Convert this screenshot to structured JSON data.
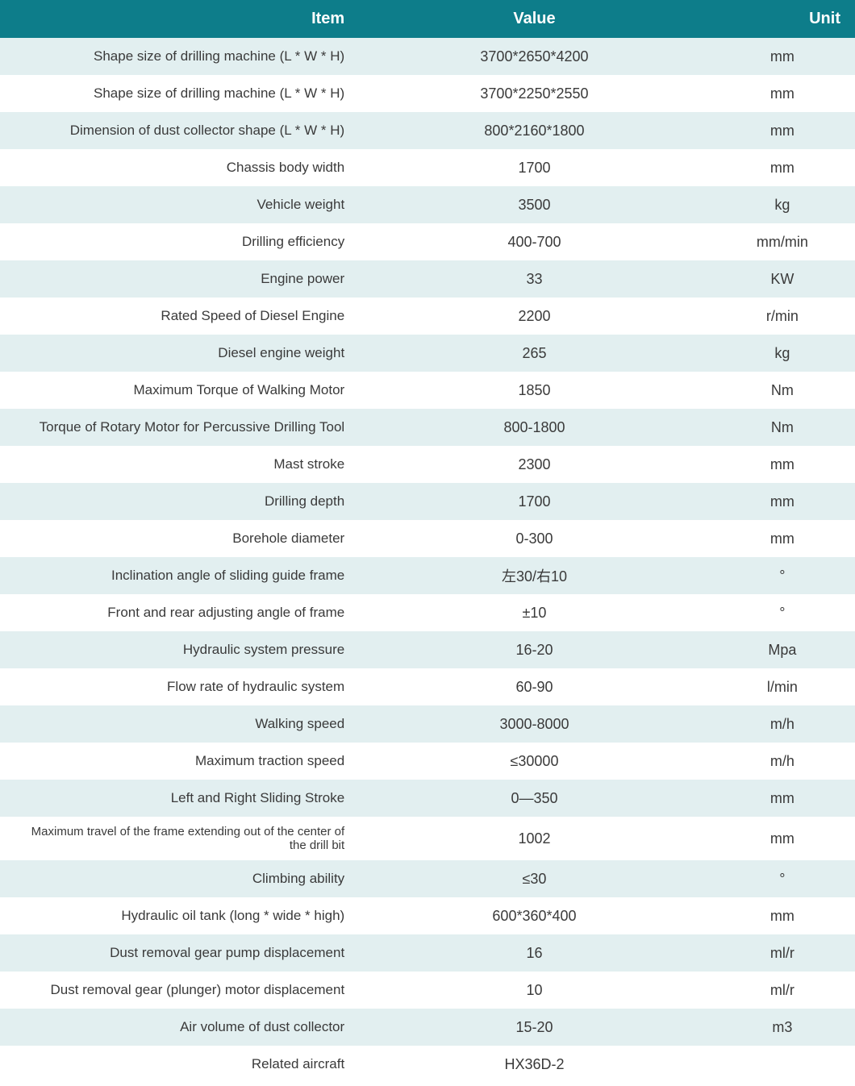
{
  "table": {
    "type": "table",
    "header_bg": "#0d7d8a",
    "header_text_color": "#ffffff",
    "row_odd_bg": "#e2eff0",
    "row_even_bg": "#ffffff",
    "text_color": "#3a3a3a",
    "columns": [
      {
        "key": "item",
        "label": "Item",
        "align": "right",
        "width_pct": 42
      },
      {
        "key": "value",
        "label": "Value",
        "align": "center",
        "width_pct": 41
      },
      {
        "key": "unit",
        "label": "Unit",
        "align": "right",
        "width_pct": 17
      }
    ],
    "rows": [
      {
        "item": "Shape size of drilling machine (L * W * H)",
        "value": "3700*2650*4200",
        "unit": "mm"
      },
      {
        "item": "Shape size of drilling machine (L * W * H)",
        "value": "3700*2250*2550",
        "unit": "mm"
      },
      {
        "item": "Dimension of dust collector shape (L * W * H)",
        "value": "800*2160*1800",
        "unit": "mm"
      },
      {
        "item": "Chassis body width",
        "value": "1700",
        "unit": "mm"
      },
      {
        "item": "Vehicle weight",
        "value": "3500",
        "unit": "kg"
      },
      {
        "item": "Drilling efficiency",
        "value": "400-700",
        "unit": "mm/min"
      },
      {
        "item": "Engine power",
        "value": "33",
        "unit": "KW"
      },
      {
        "item": "Rated Speed of Diesel Engine",
        "value": "2200",
        "unit": "r/min"
      },
      {
        "item": "Diesel engine weight",
        "value": "265",
        "unit": "kg"
      },
      {
        "item": "Maximum Torque of Walking Motor",
        "value": "1850",
        "unit": "Nm"
      },
      {
        "item": "Torque of Rotary Motor for Percussive Drilling Tool",
        "value": "800-1800",
        "unit": "Nm"
      },
      {
        "item": "Mast stroke",
        "value": "2300",
        "unit": "mm"
      },
      {
        "item": "Drilling depth",
        "value": "1700",
        "unit": "mm"
      },
      {
        "item": "Borehole diameter",
        "value": "0-300",
        "unit": "mm"
      },
      {
        "item": "Inclination angle of sliding guide frame",
        "value": "左30/右10",
        "unit": "°"
      },
      {
        "item": "Front and rear adjusting angle of frame",
        "value": "±10",
        "unit": "°"
      },
      {
        "item": "Hydraulic system pressure",
        "value": "16-20",
        "unit": "Mpa"
      },
      {
        "item": "Flow rate of hydraulic system",
        "value": "60-90",
        "unit": "l/min"
      },
      {
        "item": "Walking speed",
        "value": "3000-8000",
        "unit": "m/h"
      },
      {
        "item": "Maximum traction speed",
        "value": "≤30000",
        "unit": "m/h"
      },
      {
        "item": "Left and Right Sliding Stroke",
        "value": "0—350",
        "unit": "mm"
      },
      {
        "item": "Maximum travel of the frame extending out of the center of the drill bit",
        "value": "1002",
        "unit": "mm",
        "small": true
      },
      {
        "item": "Climbing ability",
        "value": "≤30",
        "unit": "°"
      },
      {
        "item": "Hydraulic oil tank (long * wide * high)",
        "value": "600*360*400",
        "unit": "mm"
      },
      {
        "item": "Dust removal gear pump displacement",
        "value": "16",
        "unit": "ml/r"
      },
      {
        "item": "Dust removal gear (plunger) motor displacement",
        "value": "10",
        "unit": "ml/r"
      },
      {
        "item": "Air volume of dust collector",
        "value": "15-20",
        "unit": "m3"
      },
      {
        "item": "Related aircraft",
        "value": "HX36D-2",
        "unit": ""
      }
    ]
  }
}
